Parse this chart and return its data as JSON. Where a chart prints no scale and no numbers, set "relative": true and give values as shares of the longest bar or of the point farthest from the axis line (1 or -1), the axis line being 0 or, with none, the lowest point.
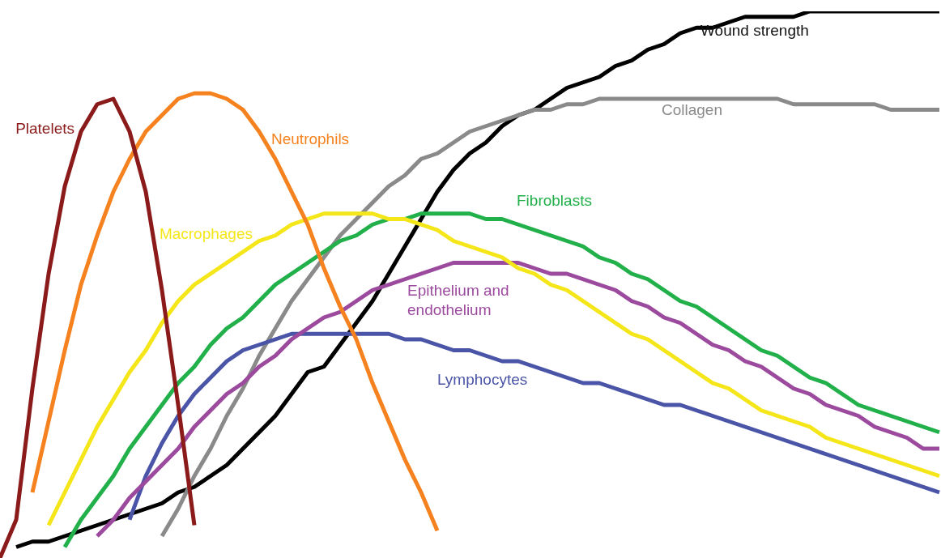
{
  "chart_data": {
    "type": "line",
    "relative": true,
    "categories": [
      null,
      null,
      null,
      null,
      null,
      null,
      null,
      null,
      null,
      null,
      null,
      null,
      null,
      null,
      null,
      null,
      null,
      null,
      null,
      null,
      null,
      null,
      null,
      null,
      null,
      null,
      null,
      null,
      null,
      null,
      null,
      null,
      null,
      null,
      null,
      null,
      null,
      null,
      null,
      null,
      null,
      null,
      null,
      null,
      null,
      null,
      null,
      null,
      null,
      null,
      null,
      null,
      null,
      null,
      null,
      null,
      null,
      null,
      null
    ],
    "series": [
      {
        "name": "Platelets",
        "color": "#8b1a1a",
        "values": [
          0,
          0.07,
          0.31,
          0.52,
          0.68,
          0.78,
          0.83,
          0.84,
          0.78,
          0.67,
          0.49,
          0.28,
          0.06,
          null,
          null,
          null,
          null,
          null,
          null,
          null,
          null,
          null,
          null,
          null,
          null,
          null,
          null,
          null,
          null,
          null,
          null,
          null,
          null,
          null,
          null,
          null,
          null,
          null,
          null,
          null,
          null,
          null,
          null,
          null,
          null,
          null,
          null,
          null,
          null,
          null,
          null,
          null,
          null,
          null,
          null,
          null,
          null,
          null,
          null
        ]
      },
      {
        "name": "Neutrophils",
        "color": "#f5821f",
        "values": [
          null,
          null,
          0.12,
          0.25,
          0.38,
          0.5,
          0.59,
          0.67,
          0.73,
          0.78,
          0.81,
          0.84,
          0.85,
          0.85,
          0.84,
          0.82,
          0.78,
          0.73,
          0.67,
          0.61,
          0.53,
          0.46,
          0.4,
          0.32,
          0.25,
          0.18,
          0.12,
          0.05,
          null,
          null,
          null,
          null,
          null,
          null,
          null,
          null,
          null,
          null,
          null,
          null,
          null,
          null,
          null,
          null,
          null,
          null,
          null,
          null,
          null,
          null,
          null,
          null,
          null,
          null,
          null,
          null,
          null,
          null,
          null
        ]
      },
      {
        "name": "Macrophages",
        "color": "#f5e61a",
        "values": [
          null,
          null,
          null,
          0.06,
          0.12,
          0.18,
          0.24,
          0.29,
          0.34,
          0.38,
          0.43,
          0.47,
          0.5,
          0.52,
          0.54,
          0.56,
          0.58,
          0.59,
          0.61,
          0.62,
          0.63,
          0.63,
          0.63,
          0.63,
          0.62,
          0.62,
          0.61,
          0.6,
          0.58,
          0.57,
          0.56,
          0.55,
          0.53,
          0.52,
          0.5,
          0.49,
          0.47,
          0.45,
          0.43,
          0.41,
          0.4,
          0.38,
          0.36,
          0.34,
          0.32,
          0.31,
          0.29,
          0.27,
          0.26,
          0.25,
          0.24,
          0.22,
          0.21,
          0.2,
          0.19,
          0.18,
          0.17,
          0.16,
          0.15
        ]
      },
      {
        "name": "Fibroblasts",
        "color": "#22b04a",
        "values": [
          null,
          null,
          null,
          null,
          0.02,
          0.07,
          0.11,
          0.15,
          0.2,
          0.24,
          0.28,
          0.32,
          0.35,
          0.39,
          0.42,
          0.44,
          0.47,
          0.5,
          0.52,
          0.54,
          0.56,
          0.58,
          0.59,
          0.61,
          0.62,
          0.62,
          0.63,
          0.63,
          0.63,
          0.63,
          0.62,
          0.62,
          0.61,
          0.6,
          0.59,
          0.58,
          0.57,
          0.55,
          0.54,
          0.52,
          0.51,
          0.49,
          0.47,
          0.46,
          0.44,
          0.42,
          0.4,
          0.38,
          0.37,
          0.35,
          0.33,
          0.32,
          0.3,
          0.28,
          0.27,
          0.26,
          0.25,
          0.24,
          0.23
        ]
      },
      {
        "name": "Epithelium and endothelium",
        "color": "#9b4a9e",
        "values": [
          null,
          null,
          null,
          null,
          null,
          null,
          0.04,
          0.07,
          0.11,
          0.14,
          0.17,
          0.2,
          0.24,
          0.27,
          0.3,
          0.32,
          0.35,
          0.37,
          0.4,
          0.42,
          0.44,
          0.45,
          0.47,
          0.49,
          0.5,
          0.51,
          0.52,
          0.53,
          0.54,
          0.54,
          0.54,
          0.54,
          0.54,
          0.53,
          0.52,
          0.52,
          0.51,
          0.5,
          0.49,
          0.47,
          0.46,
          0.44,
          0.43,
          0.41,
          0.39,
          0.38,
          0.36,
          0.35,
          0.33,
          0.31,
          0.3,
          0.28,
          0.27,
          0.26,
          0.24,
          0.23,
          0.22,
          0.2,
          0.2
        ]
      },
      {
        "name": "Lymphocytes",
        "color": "#4a55a8",
        "values": [
          null,
          null,
          null,
          null,
          null,
          null,
          null,
          null,
          0.07,
          0.15,
          0.21,
          0.26,
          0.3,
          0.33,
          0.36,
          0.38,
          0.39,
          0.4,
          0.41,
          0.41,
          0.41,
          0.41,
          0.41,
          0.41,
          0.41,
          0.4,
          0.4,
          0.39,
          0.38,
          0.38,
          0.37,
          0.36,
          0.36,
          0.35,
          0.34,
          0.33,
          0.32,
          0.32,
          0.31,
          0.3,
          0.29,
          0.28,
          0.28,
          0.27,
          0.26,
          0.25,
          0.24,
          0.23,
          0.22,
          0.21,
          0.2,
          0.19,
          0.18,
          0.17,
          0.16,
          0.15,
          0.14,
          0.13,
          0.12
        ]
      },
      {
        "name": "Collagen",
        "color": "#8a8a8a",
        "values": [
          null,
          null,
          null,
          null,
          null,
          null,
          null,
          null,
          null,
          null,
          0.04,
          0.09,
          0.15,
          0.2,
          0.26,
          0.31,
          0.37,
          0.42,
          0.47,
          0.51,
          0.55,
          0.59,
          0.62,
          0.65,
          0.68,
          0.7,
          0.73,
          0.74,
          0.76,
          0.78,
          0.79,
          0.8,
          0.81,
          0.82,
          0.82,
          0.83,
          0.83,
          0.84,
          0.84,
          0.84,
          0.84,
          0.84,
          0.84,
          0.84,
          0.84,
          0.84,
          0.84,
          0.84,
          0.84,
          0.83,
          0.83,
          0.83,
          0.83,
          0.83,
          0.83,
          0.82,
          0.82,
          0.82,
          0.82
        ]
      },
      {
        "name": "Wound strength",
        "color": "#000000",
        "values": [
          null,
          0.02,
          0.03,
          0.03,
          0.04,
          0.05,
          0.06,
          0.07,
          0.08,
          0.09,
          0.1,
          0.12,
          0.13,
          0.15,
          0.17,
          0.2,
          0.23,
          0.26,
          0.3,
          0.34,
          0.35,
          0.39,
          0.43,
          0.47,
          0.52,
          0.57,
          0.62,
          0.67,
          0.71,
          0.74,
          0.76,
          0.79,
          0.81,
          0.82,
          0.84,
          0.86,
          0.87,
          0.88,
          0.9,
          0.91,
          0.93,
          0.94,
          0.96,
          0.97,
          0.97,
          0.98,
          0.99,
          0.99,
          0.99,
          0.99,
          1.0,
          1.0,
          1.0,
          1.0,
          1.0,
          1.0,
          1.0,
          1.0,
          1.0
        ]
      }
    ]
  }
}
